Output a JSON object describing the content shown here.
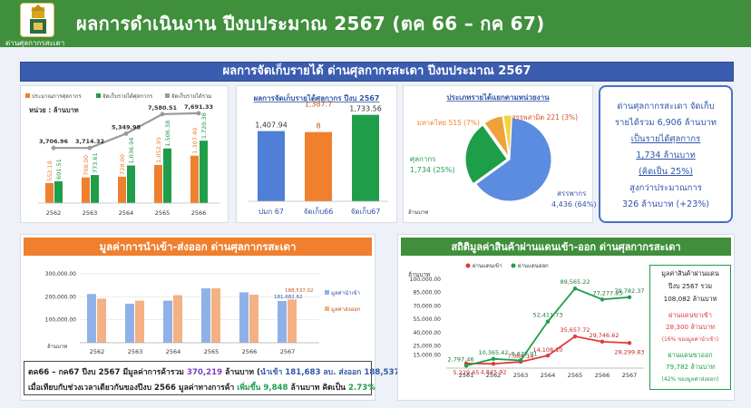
{
  "header": {
    "title": "ผลการดำเนินงาน ปีงบประมาณ 2567 (ตค 66 – กค 67)",
    "subtitle": "ด่านศุลกากรสะเดา"
  },
  "banner": "ผลการจัดเก็บรายได้ ด่านศุลกากรสะเดา ปีงบประมาณ 2567",
  "colors": {
    "orange": "#f07f2e",
    "green": "#1f9e4a",
    "gray": "#9a9a9a",
    "blue": "#4f7fd6",
    "red": "#e03a3a"
  },
  "chart_data": [
    {
      "type": "bar",
      "id": "revenue_trend",
      "unit_label": "หน่วย : ล้านบาท",
      "categories": [
        "2562",
        "2563",
        "2564",
        "2565",
        "2566"
      ],
      "series": [
        {
          "name": "ประมาณการศุลกากร",
          "values": [
            552.18,
            708.0,
            728.0,
            1052.95,
            1307.4
          ]
        },
        {
          "name": "จัดเก็บรายได้ศุลกากร",
          "values": [
            601.51,
            773.61,
            1036.94,
            1506.38,
            1720.38
          ]
        },
        {
          "name": "จัดเก็บรายได้รวม",
          "type": "line",
          "values": [
            3706.96,
            3714.32,
            5349.98,
            7580.51,
            7691.33
          ]
        }
      ],
      "value_labels": {
        "estimate": [
          "552.18",
          "708.00",
          "728.00",
          "1,052.95",
          "1,307.40"
        ],
        "collected": [
          "601.51",
          "773.61",
          "1,036.94",
          "1,506.38",
          "1,720.38"
        ],
        "total": [
          "3,706.96",
          "3,714.32",
          "5,349.98",
          "7,580.51",
          "7,691.33"
        ]
      }
    },
    {
      "type": "bar",
      "id": "revenue_2567",
      "title": "ผลการจัดเก็บรายได้ศุลกากร ปีงบ 2567",
      "categories": [
        "ปมก 67",
        "จัดเก็บ66",
        "จัดเก็บ67"
      ],
      "values": [
        1407.94,
        1387.7,
        1733.56
      ],
      "value_labels": [
        "1,407.94",
        "1,387.7",
        "1,733.56"
      ],
      "extra_label": "8"
    },
    {
      "type": "pie",
      "id": "revenue_by_agency",
      "title": "ประเภทรายได้แยกตามหน่วยงาน",
      "unit_label": "ล้านบาท",
      "slices": [
        {
          "name": "สรรพากร",
          "value": 4436,
          "pct": 64,
          "label": "สรรพากร",
          "sub": "4,436 (64%)"
        },
        {
          "name": "ศุลกากร",
          "value": 1734,
          "pct": 25,
          "label": "ศุลกากร",
          "sub": "1,734 (25%)"
        },
        {
          "name": "มหาดไทย",
          "value": 515,
          "pct": 7,
          "label": "มหาดไทย 515 (7%)"
        },
        {
          "name": "สรรพสามิต",
          "value": 221,
          "pct": 3,
          "label": "สรรพสามิต 221 (3%)"
        }
      ]
    },
    {
      "type": "bar",
      "id": "import_export",
      "title": "มูลค่าการนำเข้า-ส่งออก ด่านศุลกากรสะเดา",
      "xlabel": "ล้านบาท",
      "categories": [
        "2562",
        "2563",
        "2564",
        "2565",
        "2566",
        "2567"
      ],
      "ylim": [
        0,
        300000
      ],
      "yticks": [
        "300,000.00",
        "200,000.00",
        "100,000.00"
      ],
      "series": [
        {
          "name": "มูลค่านำเข้า",
          "values": [
            212016.49,
            170015.56,
            183278.95,
            236614.82,
            219476.35,
            181682.62
          ]
        },
        {
          "name": "มูลค่าส่งออก",
          "values": [
            192000,
            183000,
            207000,
            237000,
            209000,
            188537.02
          ]
        }
      ],
      "value_labels": {
        "imports_last": "181,682.62",
        "exports_last": "188,537.02"
      }
    },
    {
      "type": "line",
      "id": "transit_trade",
      "title": "สถิติมูลค่าสินค้าผ่านแดนเข้า-ออก ด่านศุลกากรสะเดา",
      "ylabel": "ล้านบาท",
      "categories": [
        "2561",
        "2562",
        "2563",
        "2564",
        "2565",
        "2566",
        "2567"
      ],
      "ylim": [
        0,
        100000
      ],
      "yticks": [
        "100,000.00",
        "85,000.00",
        "70,000.00",
        "55,000.00",
        "40,000.00",
        "25,000.00",
        "15,000.00"
      ],
      "series": [
        {
          "name": "ผ่านแดนเข้า",
          "values": [
            5229.65,
            4845.92,
            7068.14,
            14108.1,
            35657.72,
            29746.62,
            28299.83
          ],
          "labels": [
            "5,229.65",
            "4,845.92",
            "7,068.14",
            "14,108.10",
            "35,657.72",
            "29,746.62",
            "28,299.83"
          ]
        },
        {
          "name": "ผ่านแดนออก",
          "values": [
            2797.46,
            10365.42,
            8677.01,
            52411.73,
            89565.22,
            77277.85,
            79782.37
          ],
          "labels": [
            "2,797.46",
            "10,365.42",
            "8,677.01",
            "52,411.73",
            "89,565.22",
            "77,277.85",
            "79,782.37"
          ]
        }
      ]
    }
  ],
  "summary_box": {
    "line1": "ด่านศุลกากรสะเดา จัดเก็บ",
    "line2": "รายได้รวม 6,906 ล้านบาท",
    "line3": "เป็นรายได้ศุลกากร",
    "line4": "1,734 ล้านบาท",
    "line5": "(คิดเป็น 25%)",
    "line6": "สูงกว่าประมาณการ",
    "line7": "326 ล้านบาท (+23%)"
  },
  "trade_note": {
    "l1a": "ตค66 – กค67 ปีงบ 2567 มีมูลค่าการค้ารวม ",
    "l1b": "370,219",
    "l1c": " ล้านบาท (",
    "l1d": "นำเข้า 181,683 ลบ. ส่งออก 188,537 ลบ.",
    "l1e": ")",
    "l2a": "เมื่อเทียบกับช่วงเวลาเดียวกันของปีงบ 2566 มูลค่าทางการค้า ",
    "l2b": "เพิ่มขึ้น 9,848",
    "l2c": " ล้านบาท คิดเป็น ",
    "l2d": "2.73%"
  },
  "transit_side": {
    "t1": "มูลค่าสินค้าผ่านแดน",
    "t2": "ปีงบ 2567 รวม",
    "t3": "108,082 ล้านบาท",
    "t4": "ผ่านแดนขาเข้า",
    "t5": "28,300 ล้านบาท",
    "t6": "(16% ของมูลค่านำเข้า)",
    "t7": "ผ่านแดนขาออก",
    "t8": "79,782 ล้านบาท",
    "t9": "(42% ของมูลค่าส่งออก)"
  }
}
